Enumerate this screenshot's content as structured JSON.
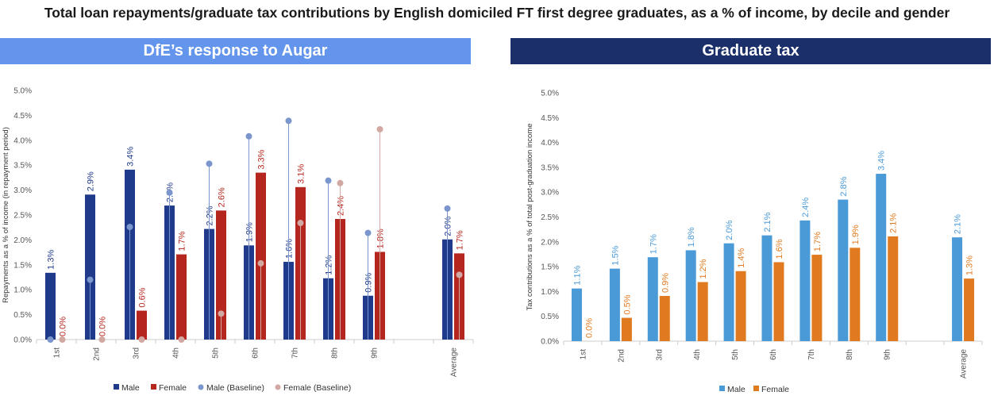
{
  "title": "Total loan repayments/graduate tax contributions by English domiciled FT first degree graduates, as a % of income, by decile and gender",
  "panels": {
    "left_title": "DfE’s response to Augar",
    "right_title": "Graduate tax"
  },
  "colors": {
    "left_male": "#1f3a8a",
    "left_female": "#b5261e",
    "left_male_baseline": "#7a96cc",
    "left_female_baseline": "#d2a9a2",
    "right_male": "#4a9ad8",
    "right_female": "#e07a20",
    "left_header": "#6495ed",
    "right_header": "#1b2f6b"
  },
  "chart_data": [
    {
      "type": "bar",
      "title": "",
      "ylabel": "Repayments as a % of income (in repayment period)",
      "xlabel": "",
      "ylim": [
        0,
        5
      ],
      "yticks": [
        "0.0%",
        "0.5%",
        "1.0%",
        "1.5%",
        "2.0%",
        "2.5%",
        "3.0%",
        "3.5%",
        "4.0%",
        "4.5%",
        "5.0%"
      ],
      "categories": [
        "1st",
        "2nd",
        "3rd",
        "4th",
        "5th",
        "6th",
        "7th",
        "8th",
        "9th",
        "",
        "Average"
      ],
      "series": [
        {
          "name": "Male",
          "kind": "bar",
          "values": [
            1.34,
            2.91,
            3.41,
            2.69,
            2.22,
            1.89,
            1.56,
            1.23,
            0.88,
            null,
            2.01
          ],
          "labels": [
            "1.3%",
            "2.9%",
            "3.4%",
            "2.7%",
            "2.2%",
            "1.9%",
            "1.6%",
            "1.2%",
            "0.9%",
            "",
            "2.0%"
          ]
        },
        {
          "name": "Female",
          "kind": "bar",
          "values": [
            0.0,
            0.0,
            0.58,
            1.71,
            2.59,
            3.35,
            3.06,
            2.42,
            1.76,
            null,
            1.73
          ],
          "labels": [
            "0.0%",
            "0.0%",
            "0.6%",
            "1.7%",
            "2.6%",
            "3.3%",
            "3.1%",
            "2.4%",
            "1.8%",
            "",
            "1.7%"
          ]
        },
        {
          "name": "Male (Baseline)",
          "kind": "lollipop",
          "values": [
            0.0,
            1.2,
            2.26,
            2.95,
            3.53,
            4.08,
            4.39,
            3.19,
            2.14,
            null,
            2.63
          ]
        },
        {
          "name": "Female (Baseline)",
          "kind": "lollipop",
          "values": [
            0.0,
            0.0,
            0.0,
            0.0,
            0.52,
            1.53,
            2.34,
            3.14,
            4.22,
            null,
            1.3
          ]
        }
      ],
      "legend": [
        "Male",
        "Female",
        "Male (Baseline)",
        "Female (Baseline)"
      ],
      "legend_position": "bottom",
      "grid": true
    },
    {
      "type": "bar",
      "title": "",
      "ylabel": "Tax contributions as a % of total post-graduation income",
      "xlabel": "",
      "ylim": [
        0,
        5
      ],
      "yticks": [
        "0.0%",
        "0.5%",
        "1.0%",
        "1.5%",
        "2.0%",
        "2.5%",
        "3.0%",
        "3.5%",
        "4.0%",
        "4.5%",
        "5.0%"
      ],
      "categories": [
        "1st",
        "2nd",
        "3rd",
        "4th",
        "5th",
        "6th",
        "7th",
        "8th",
        "9th",
        "",
        "Average"
      ],
      "series": [
        {
          "name": "Male",
          "kind": "bar",
          "values": [
            1.06,
            1.46,
            1.69,
            1.83,
            1.97,
            2.13,
            2.43,
            2.85,
            3.37,
            null,
            2.09
          ],
          "labels": [
            "1.1%",
            "1.5%",
            "1.7%",
            "1.8%",
            "2.0%",
            "2.1%",
            "2.4%",
            "2.8%",
            "3.4%",
            "",
            "2.1%"
          ]
        },
        {
          "name": "Female",
          "kind": "bar",
          "values": [
            0.0,
            0.47,
            0.91,
            1.19,
            1.41,
            1.59,
            1.74,
            1.88,
            2.11,
            null,
            1.26
          ],
          "labels": [
            "0.0%",
            "0.5%",
            "0.9%",
            "1.2%",
            "1.4%",
            "1.6%",
            "1.7%",
            "1.9%",
            "2.1%",
            "",
            "1.3%"
          ]
        }
      ],
      "legend": [
        "Male",
        "Female"
      ],
      "legend_position": "bottom",
      "grid": true
    }
  ]
}
